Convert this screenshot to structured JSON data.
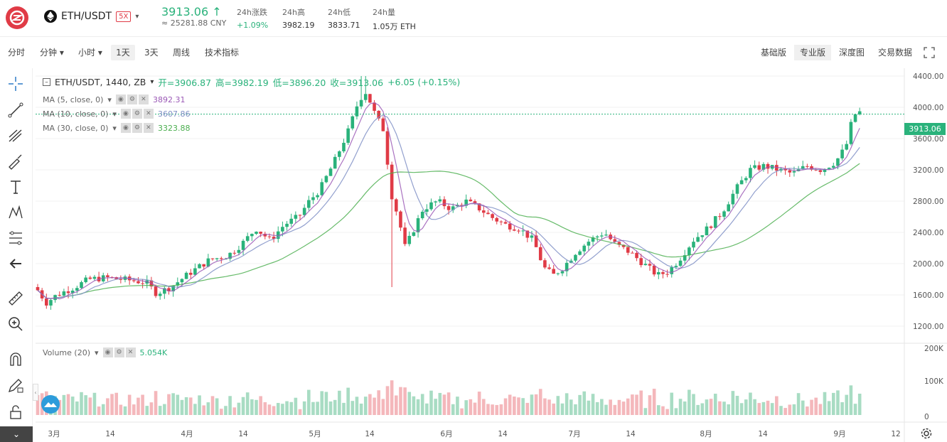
{
  "header": {
    "pair": "ETH/USDT",
    "leverage": "5X",
    "price": "3913.06 ↑",
    "price_cny": "≈ 25281.88 CNY",
    "stats": [
      {
        "label": "24h涨跌",
        "value": "+1.09%",
        "green": true
      },
      {
        "label": "24h高",
        "value": "3982.19"
      },
      {
        "label": "24h低",
        "value": "3833.71"
      },
      {
        "label": "24h量",
        "value": "1.05万 ETH"
      }
    ]
  },
  "toolbar": {
    "intervals": [
      "分时",
      "分钟 ▾",
      "小时 ▾",
      "1天",
      "3天",
      "周线",
      "技术指标"
    ],
    "active_interval": "1天",
    "views": [
      "基础版",
      "专业版",
      "深度图",
      "交易数据"
    ],
    "active_view": "专业版"
  },
  "legend": {
    "symbol": "ETH/USDT, 1440, ZB",
    "open": "开=3906.87",
    "high": "高=3982.19",
    "low": "低=3896.20",
    "close": "收=3913.06",
    "change": "+6.05 (+0.15%)",
    "ma": [
      {
        "label": "MA (5, close, 0)",
        "value": "3892.31",
        "color": "#9b59b6"
      },
      {
        "label": "MA (10, close, 0)",
        "value": "3607.86",
        "color": "#7f8fc6"
      },
      {
        "label": "MA (30, close, 0)",
        "value": "3323.88",
        "color": "#4caf50"
      }
    ],
    "volume_label": "Volume (20)",
    "volume_value": "5.054K"
  },
  "chart_data": {
    "type": "candlestick",
    "price_axis": [
      "4400.00",
      "4000.00",
      "3600.00",
      "3200.00",
      "2800.00",
      "2400.00",
      "2000.00",
      "1600.00",
      "1200.00"
    ],
    "price_ylim": [
      1000,
      4500
    ],
    "volume_axis": [
      "200K",
      "100K",
      "0"
    ],
    "x_labels": [
      "3月",
      "14",
      "4月",
      "14",
      "5月",
      "14",
      "6月",
      "14",
      "7月",
      "14",
      "8月",
      "14",
      "9月",
      "12"
    ],
    "last_price": "3913.06",
    "colors": {
      "up": "#2ab27b",
      "down": "#e03b46",
      "vol_up": "#a8dcc3",
      "vol_down": "#f4b7bb"
    }
  },
  "icons": [
    "crosshair-icon",
    "trendline-icon",
    "pitchfork-icon",
    "brush-icon",
    "text-icon",
    "pattern-icon",
    "fib-icon",
    "back-arrow-icon",
    "ruler-icon",
    "zoom-in-icon",
    "magnet-icon",
    "pencil-lock-icon",
    "lock-icon",
    "settings-icon"
  ]
}
